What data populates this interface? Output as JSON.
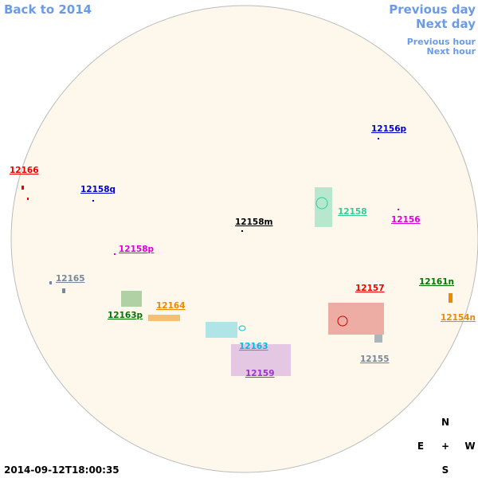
{
  "nav": {
    "back": "Back to 2014",
    "previous_day": "Previous day",
    "next_day": "Next day",
    "previous_hour": "Previous hour",
    "next_hour": "Next hour"
  },
  "regions": [
    "12166",
    "12158q",
    "12156p",
    "12158m",
    "12158",
    "12156",
    "12158p",
    "12165",
    "12157",
    "12161n",
    "12164",
    "12163p",
    "12154n",
    "12163",
    "12155",
    "12159"
  ],
  "compass": {
    "north": "N",
    "east": "E",
    "center": "+",
    "west": "W",
    "south": "S"
  },
  "timestamp": "2014-09-12T18:00:35"
}
